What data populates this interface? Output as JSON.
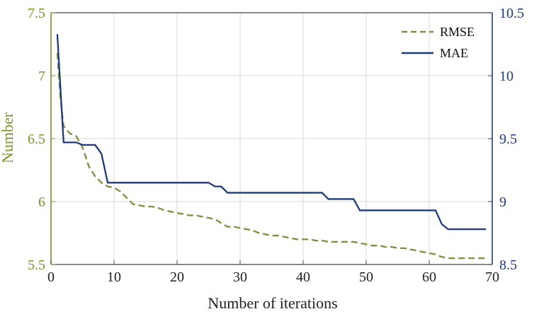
{
  "chart_data": {
    "type": "line",
    "xlabel": "Number of iterations",
    "ylabel_left": "Number",
    "ylabel_right": "",
    "xlim": [
      0,
      70
    ],
    "ylim_left": [
      5.5,
      7.5
    ],
    "ylim_right": [
      8.5,
      10.5
    ],
    "xticks": [
      0,
      10,
      20,
      30,
      40,
      50,
      60,
      70
    ],
    "yticks_left": [
      5.5,
      6,
      6.5,
      7,
      7.5
    ],
    "yticks_right": [
      8.5,
      9,
      9.5,
      10,
      10.5
    ],
    "xtick_labels": [
      "0",
      "10",
      "20",
      "30",
      "40",
      "50",
      "60",
      "70"
    ],
    "ytick_left_labels": [
      "5.5",
      "6",
      "6.5",
      "7",
      "7.5"
    ],
    "ytick_right_labels": [
      "8.5",
      "9",
      "9.5",
      "10",
      "10.5"
    ],
    "grid": true,
    "legend_position": "top-right",
    "colors": {
      "left_axis": "#77932a",
      "right_axis": "#1f3a7a",
      "grid": "#d9d9d9"
    },
    "series": [
      {
        "name": "RMSE",
        "axis": "left",
        "style": "dashed",
        "color": "#7b8f3f",
        "x": [
          1,
          1.5,
          2,
          3,
          4,
          5,
          6,
          7,
          8,
          9,
          10,
          11,
          12,
          13,
          14,
          15,
          16,
          17,
          18,
          19,
          20,
          21,
          22,
          23,
          24,
          25,
          26,
          27,
          28,
          29,
          30,
          31,
          32,
          33,
          34,
          35,
          36,
          37,
          38,
          39,
          40,
          41,
          42,
          43,
          44,
          45,
          46,
          47,
          48,
          49,
          50,
          51,
          52,
          53,
          54,
          55,
          56,
          57,
          58,
          59,
          60,
          61,
          62,
          63,
          64,
          65,
          66,
          67,
          68,
          69
        ],
        "y": [
          7.18,
          6.82,
          6.6,
          6.54,
          6.52,
          6.43,
          6.28,
          6.2,
          6.15,
          6.12,
          6.11,
          6.08,
          6.03,
          5.98,
          5.97,
          5.96,
          5.96,
          5.95,
          5.93,
          5.92,
          5.91,
          5.9,
          5.89,
          5.89,
          5.88,
          5.87,
          5.86,
          5.83,
          5.8,
          5.8,
          5.79,
          5.78,
          5.77,
          5.75,
          5.74,
          5.73,
          5.73,
          5.72,
          5.71,
          5.7,
          5.7,
          5.7,
          5.69,
          5.69,
          5.68,
          5.68,
          5.68,
          5.68,
          5.68,
          5.67,
          5.66,
          5.65,
          5.65,
          5.64,
          5.64,
          5.63,
          5.63,
          5.62,
          5.61,
          5.6,
          5.59,
          5.58,
          5.56,
          5.55,
          5.55,
          5.55,
          5.55,
          5.55,
          5.55,
          5.55
        ]
      },
      {
        "name": "MAE",
        "axis": "right",
        "style": "solid",
        "color": "#1f3a7a",
        "x": [
          1,
          2,
          4,
          5,
          7,
          8,
          9,
          10,
          15,
          20,
          25,
          26,
          27,
          28,
          30,
          35,
          40,
          43,
          44,
          48,
          49,
          50,
          55,
          60,
          61,
          62,
          63,
          65,
          69
        ],
        "y": [
          10.33,
          9.47,
          9.47,
          9.45,
          9.45,
          9.38,
          9.15,
          9.15,
          9.15,
          9.15,
          9.15,
          9.12,
          9.12,
          9.07,
          9.07,
          9.07,
          9.07,
          9.07,
          9.02,
          9.02,
          8.93,
          8.93,
          8.93,
          8.93,
          8.93,
          8.82,
          8.78,
          8.78,
          8.78
        ]
      }
    ]
  }
}
